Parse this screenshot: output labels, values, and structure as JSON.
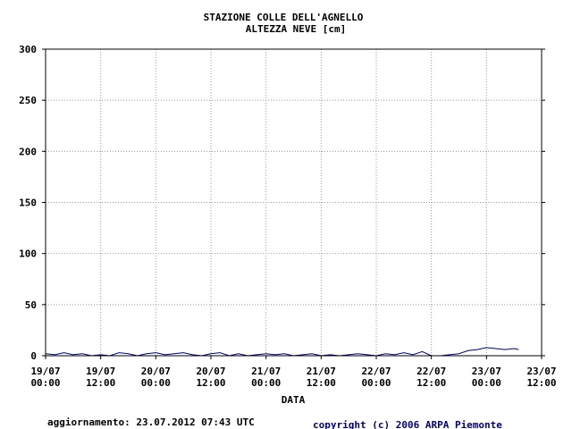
{
  "chart_data": {
    "type": "line",
    "title": "STAZIONE COLLE DELL'AGNELLO",
    "subtitle": "ALTEZZA NEVE [cm]",
    "xlabel": "DATA",
    "ylabel": "",
    "ylim": [
      0,
      300
    ],
    "yticks": [
      0,
      50,
      100,
      150,
      200,
      250,
      300
    ],
    "xlim": [
      "2012-07-19T00:00",
      "2012-07-23T12:00"
    ],
    "xticks": [
      {
        "line1": "19/07",
        "line2": "00:00"
      },
      {
        "line1": "19/07",
        "line2": "12:00"
      },
      {
        "line1": "20/07",
        "line2": "00:00"
      },
      {
        "line1": "20/07",
        "line2": "12:00"
      },
      {
        "line1": "21/07",
        "line2": "00:00"
      },
      {
        "line1": "21/07",
        "line2": "12:00"
      },
      {
        "line1": "22/07",
        "line2": "00:00"
      },
      {
        "line1": "22/07",
        "line2": "12:00"
      },
      {
        "line1": "23/07",
        "line2": "00:00"
      },
      {
        "line1": "23/07",
        "line2": "12:00"
      }
    ],
    "grid": true,
    "line_color": "#000080",
    "series": [
      {
        "x": [
          "2012-07-19T00:00",
          "2012-07-19T02:00",
          "2012-07-19T04:00",
          "2012-07-19T06:00",
          "2012-07-19T08:00",
          "2012-07-19T10:00",
          "2012-07-19T12:00",
          "2012-07-19T14:00",
          "2012-07-19T16:00",
          "2012-07-19T18:00",
          "2012-07-19T20:00",
          "2012-07-19T22:00",
          "2012-07-20T00:00",
          "2012-07-20T02:00",
          "2012-07-20T04:00",
          "2012-07-20T06:00",
          "2012-07-20T08:00",
          "2012-07-20T10:00",
          "2012-07-20T12:00",
          "2012-07-20T14:00",
          "2012-07-20T16:00",
          "2012-07-20T18:00",
          "2012-07-20T20:00",
          "2012-07-20T22:00",
          "2012-07-21T00:00",
          "2012-07-21T02:00",
          "2012-07-21T04:00",
          "2012-07-21T06:00",
          "2012-07-21T08:00",
          "2012-07-21T10:00",
          "2012-07-21T12:00",
          "2012-07-21T14:00",
          "2012-07-21T16:00",
          "2012-07-21T18:00",
          "2012-07-21T20:00",
          "2012-07-21T22:00",
          "2012-07-22T00:00",
          "2012-07-22T02:00",
          "2012-07-22T04:00",
          "2012-07-22T06:00",
          "2012-07-22T08:00",
          "2012-07-22T10:00",
          "2012-07-22T12:00",
          "2012-07-22T14:00",
          "2012-07-22T16:00",
          "2012-07-22T18:00",
          "2012-07-22T20:00",
          "2012-07-22T22:00",
          "2012-07-23T00:00",
          "2012-07-23T02:00",
          "2012-07-23T04:00",
          "2012-07-23T06:00",
          "2012-07-23T07:00"
        ],
        "y": [
          2,
          1,
          3,
          1,
          2,
          0,
          1,
          0,
          3,
          2,
          0,
          2,
          3,
          1,
          2,
          3,
          1,
          0,
          2,
          3,
          0,
          2,
          0,
          1,
          2,
          1,
          2,
          0,
          1,
          2,
          0,
          1,
          0,
          1,
          2,
          1,
          0,
          2,
          1,
          3,
          1,
          4,
          0,
          0,
          1,
          2,
          5,
          6,
          8,
          7,
          6,
          7,
          6
        ]
      }
    ]
  },
  "footer": {
    "updated": "aggiornamento: 23.07.2012 07:43 UTC",
    "copyright": "copyright (c) 2006 ARPA Piemonte"
  }
}
